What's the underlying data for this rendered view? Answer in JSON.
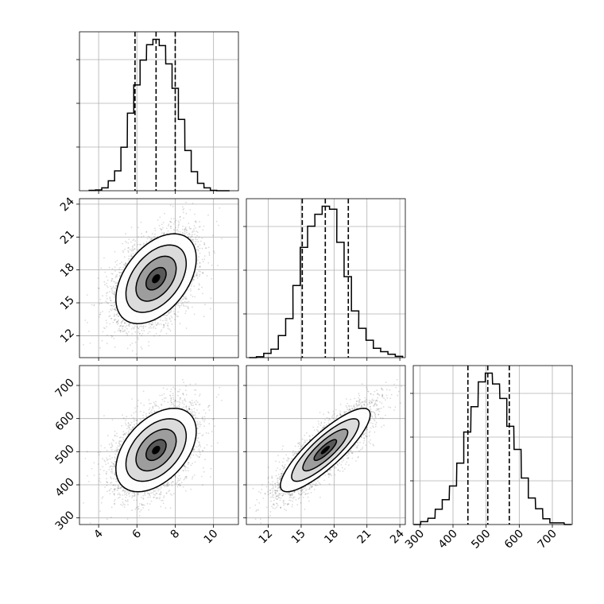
{
  "chart_data": {
    "type": "corner",
    "parameters": [
      {
        "name": "",
        "range": [
          3,
          11.3
        ],
        "ticks": [
          4,
          6,
          8,
          10
        ],
        "hist_x": [
          3.67,
          4.0,
          4.33,
          4.67,
          5.0,
          5.33,
          5.67,
          6.0,
          6.33,
          6.67,
          7.0,
          7.33,
          7.67,
          8.0,
          8.33,
          8.67,
          9.0,
          9.33,
          9.67,
          10.0,
          10.33,
          10.67
        ],
        "hist_y": [
          1,
          2,
          7,
          24,
          48,
          105,
          187,
          255,
          315,
          352,
          365,
          350,
          306,
          247,
          172,
          97,
          46,
          18,
          7,
          1,
          0,
          0
        ],
        "quantiles": [
          5.9,
          7.0,
          8.0
        ]
      },
      {
        "name": "",
        "range": [
          10,
          24.5
        ],
        "ticks": [
          12,
          15,
          18,
          21,
          24
        ],
        "hist_x": [
          10.58,
          11.25,
          11.92,
          12.58,
          13.25,
          13.92,
          14.58,
          15.25,
          15.92,
          16.58,
          17.25,
          17.92,
          18.58,
          19.25,
          19.92,
          20.58,
          21.25,
          21.92,
          22.58,
          23.25,
          23.92
        ],
        "hist_y": [
          0,
          2,
          10,
          20,
          52,
          92,
          170,
          260,
          310,
          338,
          357,
          350,
          272,
          191,
          110,
          69,
          41,
          22,
          14,
          8,
          3
        ],
        "quantiles": [
          15.1,
          17.2,
          19.3
        ]
      },
      {
        "name": "",
        "range": [
          280,
          760
        ],
        "ticks": [
          300,
          400,
          500,
          600,
          700
        ],
        "hist_x": [
          292,
          313,
          335,
          357,
          378,
          400,
          422,
          443,
          465,
          487,
          508,
          530,
          552,
          573,
          595,
          617,
          638,
          660,
          682,
          703,
          725,
          747
        ],
        "hist_y": [
          0,
          7,
          15,
          37,
          60,
          93,
          148,
          223,
          284,
          344,
          365,
          339,
          304,
          237,
          181,
          112,
          64,
          38,
          14,
          4,
          4,
          0
        ],
        "quantiles": [
          445,
          505,
          570
        ]
      }
    ],
    "correlations": {
      "0-1": 0.45,
      "0-2": 0.45,
      "1-2": 0.85
    },
    "grid": true,
    "legend": "none",
    "title": "",
    "xlabel": "",
    "ylabel": "",
    "n_samples": 5000
  }
}
